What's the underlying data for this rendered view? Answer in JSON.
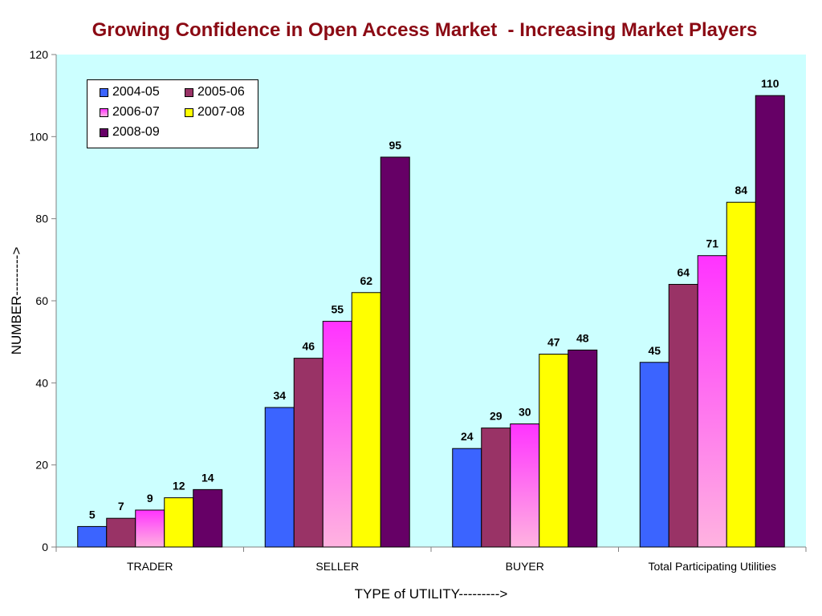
{
  "chart_data": {
    "type": "bar",
    "title": "Growing Confidence in Open Access Market  - Increasing Market Players",
    "xlabel": "TYPE of UTILITY--------->",
    "ylabel": "NUMBER--------->",
    "ylim": [
      0,
      120
    ],
    "yticks": [
      0,
      20,
      40,
      60,
      80,
      100,
      120
    ],
    "categories": [
      "TRADER",
      "SELLER",
      "BUYER",
      "Total Participating Utilities"
    ],
    "series": [
      {
        "name": "2004-05",
        "values": [
          5,
          34,
          24,
          45
        ],
        "color": "#3b64ff"
      },
      {
        "name": "2005-06",
        "values": [
          7,
          46,
          29,
          64
        ],
        "color": "#993366"
      },
      {
        "name": "2006-07",
        "values": [
          9,
          55,
          30,
          71
        ],
        "color": "#ff40ff"
      },
      {
        "name": "2007-08",
        "values": [
          12,
          62,
          47,
          84
        ],
        "color": "#ffff00"
      },
      {
        "name": "2008-09",
        "values": [
          14,
          95,
          48,
          110
        ],
        "color": "#660066"
      }
    ],
    "grid": false,
    "legend_position": "top-left",
    "plot_background": "#ccffff"
  }
}
